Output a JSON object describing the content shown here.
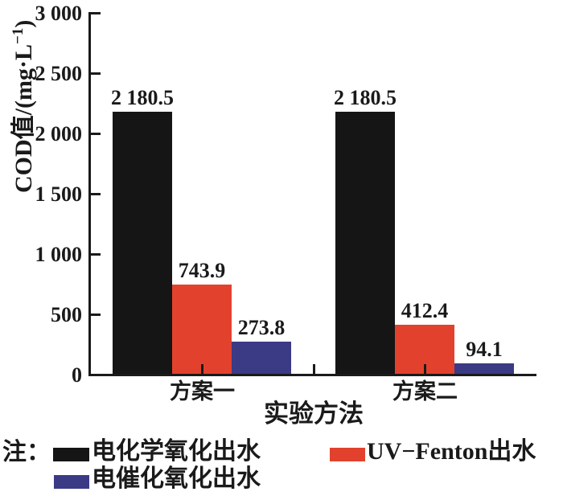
{
  "chart_data": {
    "type": "bar",
    "title": "",
    "xlabel": "实验方法",
    "ylabel": "COD值/(mg·L⁻¹)",
    "ylabel_parts": {
      "prefix": "COD值/(mg·L",
      "superscript": "−1",
      "suffix": ")"
    },
    "categories": [
      "方案一",
      "方案二"
    ],
    "series": [
      {
        "name": "电化学氧化出水",
        "color": "#151515",
        "values": [
          2180.5,
          2180.5
        ],
        "value_labels": [
          "2 180.5",
          "2 180.5"
        ]
      },
      {
        "name": "UV−Fenton出水",
        "color": "#e2422d",
        "values": [
          743.9,
          412.4
        ],
        "value_labels": [
          "743.9",
          "412.4"
        ]
      },
      {
        "name": "电催化氧化出水",
        "color": "#3a3a85",
        "values": [
          273.8,
          94.1
        ],
        "value_labels": [
          "273.8",
          "94.1"
        ]
      }
    ],
    "ylim": [
      0,
      3000
    ],
    "ytick_interval": 500,
    "yticks": [
      {
        "value": 0,
        "label": "0"
      },
      {
        "value": 500,
        "label": "500"
      },
      {
        "value": 1000,
        "label": "1 000"
      },
      {
        "value": 1500,
        "label": "1 500"
      },
      {
        "value": 2000,
        "label": "2 000"
      },
      {
        "value": 2500,
        "label": "2 500"
      },
      {
        "value": 3000,
        "label": "3 000"
      }
    ],
    "grid": false,
    "legend": {
      "position": "bottom",
      "note_label": "注：",
      "rows": [
        [
          "电化学氧化出水",
          "UV−Fenton出水"
        ],
        [
          "电催化氧化出水"
        ]
      ]
    }
  }
}
